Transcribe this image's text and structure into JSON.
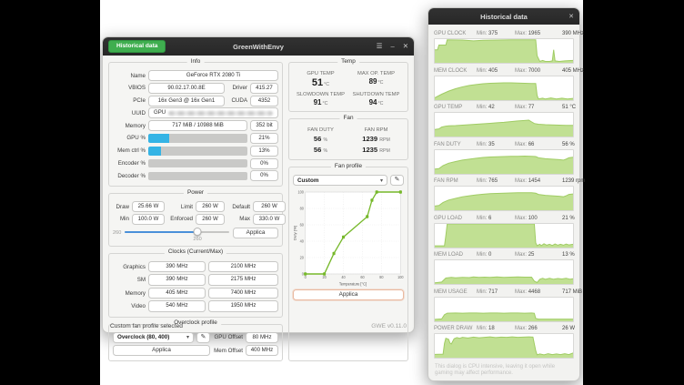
{
  "colors": {
    "accent_green": "#3fae4f",
    "progress_blue": "#35b4e5",
    "slider_blue": "#4a90d9",
    "line_green": "#76b82a",
    "area_fill": "#c1e093",
    "area_stroke": "#a0cc64",
    "titlebar": "#2b2b2b",
    "apply_highlight": "#eab9a0"
  },
  "main_window": {
    "titlebar": {
      "historical_button": "Historical data",
      "title": "GreenWithEnvy"
    },
    "info": {
      "legend": "Info",
      "name_label": "Name",
      "name_value": "GeForce RTX 2080 Ti",
      "vbios_label": "VBIOS",
      "vbios_value": "90.02.17.00.8E",
      "driver_label": "Driver",
      "driver_value": "415.27",
      "pcie_label": "PCIe",
      "pcie_value": "16x Gen3 @ 16x Gen1",
      "cuda_label": "CUDA",
      "cuda_value": "4352",
      "uuid_label": "UUID",
      "uuid_prefix": "GPU",
      "memory_label": "Memory",
      "memory_value": "717 MiB / 10988 MiB",
      "memory_interface": "352 bit",
      "usage_rows": [
        {
          "label": "GPU %",
          "pct": 21,
          "value": "21%"
        },
        {
          "label": "Mem ctrl %",
          "pct": 13,
          "value": "13%"
        },
        {
          "label": "Encoder %",
          "pct": 0,
          "value": "0%"
        },
        {
          "label": "Decoder %",
          "pct": 0,
          "value": "0%"
        }
      ]
    },
    "power": {
      "legend": "Power",
      "draw_label": "Draw",
      "draw": "25.66 W",
      "limit_label": "Limit",
      "limit": "260 W",
      "default_label": "Default",
      "default": "260 W",
      "min_label": "Min",
      "min": "100.0 W",
      "enforced_label": "Enforced",
      "enforced": "260 W",
      "max_label": "Max",
      "max": "330.0 W",
      "slider": {
        "min": 100,
        "max": 330,
        "value": 260,
        "left_label": "260",
        "handle_label": "260"
      },
      "apply_label": "Applica"
    },
    "clocks": {
      "legend": "Clocks (Current/Max)",
      "rows": [
        {
          "label": "Graphics",
          "current": "390 MHz",
          "max": "2100 MHz"
        },
        {
          "label": "SM",
          "current": "390 MHz",
          "max": "2175 MHz"
        },
        {
          "label": "Memory",
          "current": "405 MHz",
          "max": "7400 MHz"
        },
        {
          "label": "Video",
          "current": "540 MHz",
          "max": "1950 MHz"
        }
      ]
    },
    "overclock": {
      "legend": "Overclock profile",
      "selected": "Overclock (80, 400)",
      "gpu_offset_label": "GPU Offset",
      "gpu_offset": "80 MHz",
      "apply_label": "Applica",
      "mem_offset_label": "Mem Offset",
      "mem_offset": "400 MHz"
    },
    "temp": {
      "legend": "Temp",
      "items": [
        {
          "label": "GPU TEMP",
          "value": "51",
          "unit": "°C",
          "big": true
        },
        {
          "label": "MAX OP. TEMP",
          "value": "89",
          "unit": "°C",
          "big": false
        },
        {
          "label": "SLOWDOWN TEMP",
          "value": "91",
          "unit": "°C",
          "big": false
        },
        {
          "label": "SHUTDOWN TEMP",
          "value": "94",
          "unit": "°C",
          "big": false
        }
      ]
    },
    "fan": {
      "legend": "Fan",
      "duty_label": "FAN DUTY",
      "rpm_label": "FAN RPM",
      "duty_values": [
        "56",
        "56"
      ],
      "duty_unit": "%",
      "rpm_values": [
        "1239",
        "1235"
      ],
      "rpm_unit": "RPM"
    },
    "fan_profile": {
      "legend": "Fan profile",
      "selected": "Custom",
      "apply_label": "Applica"
    },
    "statusbar": {
      "status": "Custom fan profile selected",
      "version": "GWE v0.11.0"
    }
  },
  "historical_window": {
    "title": "Historical data",
    "min_label": "Min:",
    "max_label": "Max:",
    "graphs": [
      {
        "name": "GPU CLOCK",
        "min": "375",
        "max": "1965",
        "current": "390 MHz",
        "chart_id": "gpu-clock"
      },
      {
        "name": "MEM CLOCK",
        "min": "405",
        "max": "7000",
        "current": "405 MHz",
        "chart_id": "mem-clock"
      },
      {
        "name": "GPU TEMP",
        "min": "42",
        "max": "77",
        "current": "51 °C",
        "chart_id": "gpu-temp"
      },
      {
        "name": "FAN DUTY",
        "min": "35",
        "max": "66",
        "current": "56 %",
        "chart_id": "fan-duty"
      },
      {
        "name": "FAN RPM",
        "min": "765",
        "max": "1454",
        "current": "1239 rpm",
        "chart_id": "fan-rpm"
      },
      {
        "name": "GPU LOAD",
        "min": "6",
        "max": "100",
        "current": "21 %",
        "chart_id": "gpu-load"
      },
      {
        "name": "MEM LOAD",
        "min": "0",
        "max": "25",
        "current": "13 %",
        "chart_id": "mem-load"
      },
      {
        "name": "MEM USAGE",
        "min": "717",
        "max": "4468",
        "current": "717 MiB",
        "chart_id": "mem-usage"
      },
      {
        "name": "POWER DRAW",
        "min": "18",
        "max": "266",
        "current": "26 W",
        "chart_id": "power-draw"
      }
    ],
    "footer": "This dialog is CPU intensive, leaving it open while gaming may affect performance."
  },
  "chart_data": [
    {
      "id": "fan-profile-curve",
      "type": "line",
      "title": "Fan profile",
      "x": [
        0,
        20,
        30,
        40,
        65,
        70,
        75,
        100
      ],
      "y": [
        0,
        0,
        25,
        45,
        70,
        90,
        100,
        100
      ],
      "xlabel": "Temperature [°C]",
      "ylabel": "Duty [%]",
      "xlim": [
        0,
        100
      ],
      "ylim": [
        0,
        100
      ],
      "xticks": [
        0,
        20,
        40,
        60,
        80,
        100
      ],
      "yticks": [
        0,
        20,
        40,
        60,
        80,
        100
      ],
      "grid": true,
      "line_color": "#76b82a"
    },
    {
      "id": "gpu-clock",
      "type": "area",
      "unit": "MHz",
      "ymin": 375,
      "ymax": 1965,
      "current": 390,
      "points": [
        [
          0,
          55
        ],
        [
          2,
          55
        ],
        [
          3,
          75
        ],
        [
          8,
          75
        ],
        [
          9,
          97
        ],
        [
          20,
          96
        ],
        [
          28,
          93
        ],
        [
          35,
          95
        ],
        [
          45,
          96
        ],
        [
          55,
          97
        ],
        [
          65,
          97
        ],
        [
          73,
          97
        ],
        [
          74,
          30
        ],
        [
          76,
          6
        ],
        [
          78,
          10
        ],
        [
          80,
          6
        ],
        [
          83,
          6
        ],
        [
          85,
          8
        ],
        [
          86,
          55
        ],
        [
          87,
          8
        ],
        [
          90,
          6
        ],
        [
          94,
          8
        ],
        [
          100,
          10
        ]
      ]
    },
    {
      "id": "mem-clock",
      "type": "area",
      "unit": "MHz",
      "ymin": 405,
      "ymax": 7000,
      "current": 405,
      "points": [
        [
          0,
          10
        ],
        [
          5,
          25
        ],
        [
          10,
          38
        ],
        [
          15,
          48
        ],
        [
          20,
          56
        ],
        [
          25,
          62
        ],
        [
          30,
          66
        ],
        [
          35,
          69
        ],
        [
          40,
          71
        ],
        [
          45,
          72
        ],
        [
          50,
          73
        ],
        [
          55,
          73
        ],
        [
          60,
          72
        ],
        [
          65,
          71
        ],
        [
          70,
          70
        ],
        [
          73,
          70
        ],
        [
          74,
          20
        ],
        [
          75,
          5
        ],
        [
          78,
          8
        ],
        [
          80,
          5
        ],
        [
          84,
          9
        ],
        [
          88,
          5
        ],
        [
          92,
          8
        ],
        [
          96,
          5
        ],
        [
          100,
          7
        ]
      ]
    },
    {
      "id": "gpu-temp",
      "type": "area",
      "unit": "°C",
      "ymin": 42,
      "ymax": 77,
      "current": 51,
      "points": [
        [
          0,
          30
        ],
        [
          3,
          32
        ],
        [
          5,
          40
        ],
        [
          8,
          44
        ],
        [
          10,
          45
        ],
        [
          15,
          46
        ],
        [
          20,
          48
        ],
        [
          25,
          50
        ],
        [
          30,
          52
        ],
        [
          35,
          54
        ],
        [
          40,
          56
        ],
        [
          45,
          58
        ],
        [
          50,
          60
        ],
        [
          55,
          63
        ],
        [
          60,
          66
        ],
        [
          65,
          68
        ],
        [
          68,
          69
        ],
        [
          70,
          62
        ],
        [
          72,
          55
        ],
        [
          75,
          52
        ],
        [
          80,
          50
        ],
        [
          85,
          49
        ],
        [
          90,
          48
        ],
        [
          95,
          47
        ],
        [
          100,
          47
        ]
      ]
    },
    {
      "id": "fan-duty",
      "type": "area",
      "unit": "%",
      "ymin": 35,
      "ymax": 66,
      "current": 56,
      "points": [
        [
          0,
          20
        ],
        [
          3,
          22
        ],
        [
          6,
          35
        ],
        [
          10,
          45
        ],
        [
          15,
          52
        ],
        [
          20,
          58
        ],
        [
          25,
          62
        ],
        [
          30,
          66
        ],
        [
          35,
          69
        ],
        [
          40,
          71
        ],
        [
          45,
          72
        ],
        [
          50,
          73
        ],
        [
          55,
          74
        ],
        [
          60,
          74
        ],
        [
          65,
          75
        ],
        [
          70,
          74
        ],
        [
          73,
          73
        ],
        [
          75,
          68
        ],
        [
          80,
          64
        ],
        [
          85,
          62
        ],
        [
          90,
          60
        ],
        [
          93,
          58
        ],
        [
          95,
          62
        ],
        [
          97,
          68
        ],
        [
          100,
          70
        ]
      ]
    },
    {
      "id": "fan-rpm",
      "type": "area",
      "unit": "rpm",
      "ymin": 765,
      "ymax": 1454,
      "current": 1239,
      "points": [
        [
          0,
          18
        ],
        [
          3,
          20
        ],
        [
          6,
          33
        ],
        [
          10,
          43
        ],
        [
          15,
          50
        ],
        [
          20,
          57
        ],
        [
          25,
          61
        ],
        [
          30,
          65
        ],
        [
          35,
          68
        ],
        [
          40,
          70
        ],
        [
          45,
          71
        ],
        [
          50,
          72
        ],
        [
          55,
          73
        ],
        [
          60,
          74
        ],
        [
          65,
          74
        ],
        [
          70,
          74
        ],
        [
          73,
          72
        ],
        [
          75,
          67
        ],
        [
          80,
          63
        ],
        [
          85,
          61
        ],
        [
          90,
          59
        ],
        [
          93,
          57
        ],
        [
          95,
          61
        ],
        [
          97,
          67
        ],
        [
          100,
          69
        ]
      ]
    },
    {
      "id": "gpu-load",
      "type": "area",
      "unit": "%",
      "ymin": 6,
      "ymax": 100,
      "current": 21,
      "points": [
        [
          0,
          7
        ],
        [
          7,
          7
        ],
        [
          8,
          50
        ],
        [
          9,
          100
        ],
        [
          72,
          100
        ],
        [
          73,
          20
        ],
        [
          74,
          8
        ],
        [
          76,
          14
        ],
        [
          77,
          8
        ],
        [
          79,
          16
        ],
        [
          81,
          10
        ],
        [
          83,
          14
        ],
        [
          85,
          9
        ],
        [
          87,
          15
        ],
        [
          89,
          10
        ],
        [
          91,
          14
        ],
        [
          93,
          10
        ],
        [
          95,
          15
        ],
        [
          97,
          11
        ],
        [
          100,
          14
        ]
      ]
    },
    {
      "id": "mem-load",
      "type": "area",
      "unit": "%",
      "ymin": 0,
      "ymax": 25,
      "current": 13,
      "points": [
        [
          0,
          5
        ],
        [
          5,
          8
        ],
        [
          8,
          25
        ],
        [
          12,
          28
        ],
        [
          15,
          26
        ],
        [
          20,
          28
        ],
        [
          25,
          27
        ],
        [
          28,
          30
        ],
        [
          32,
          28
        ],
        [
          36,
          29
        ],
        [
          40,
          28
        ],
        [
          45,
          30
        ],
        [
          50,
          28
        ],
        [
          55,
          29
        ],
        [
          60,
          30
        ],
        [
          65,
          29
        ],
        [
          70,
          29
        ],
        [
          72,
          12
        ],
        [
          74,
          6
        ],
        [
          76,
          20
        ],
        [
          78,
          24
        ],
        [
          80,
          20
        ],
        [
          83,
          24
        ],
        [
          86,
          20
        ],
        [
          89,
          23
        ],
        [
          92,
          21
        ],
        [
          95,
          24
        ],
        [
          98,
          20
        ],
        [
          100,
          22
        ]
      ]
    },
    {
      "id": "mem-usage",
      "type": "area",
      "unit": "MiB",
      "ymin": 717,
      "ymax": 4468,
      "current": 717,
      "points": [
        [
          0,
          8
        ],
        [
          5,
          10
        ],
        [
          7,
          28
        ],
        [
          9,
          34
        ],
        [
          15,
          35
        ],
        [
          20,
          34
        ],
        [
          25,
          35
        ],
        [
          30,
          35
        ],
        [
          35,
          34
        ],
        [
          40,
          35
        ],
        [
          45,
          35
        ],
        [
          50,
          34
        ],
        [
          55,
          35
        ],
        [
          60,
          35
        ],
        [
          65,
          34
        ],
        [
          70,
          35
        ],
        [
          72,
          34
        ],
        [
          73,
          12
        ],
        [
          75,
          9
        ],
        [
          80,
          9
        ],
        [
          85,
          9
        ],
        [
          90,
          9
        ],
        [
          95,
          9
        ],
        [
          100,
          9
        ]
      ]
    },
    {
      "id": "power-draw",
      "type": "area",
      "unit": "W",
      "ymin": 18,
      "ymax": 266,
      "current": 26,
      "points": [
        [
          0,
          14
        ],
        [
          6,
          15
        ],
        [
          7,
          60
        ],
        [
          8,
          82
        ],
        [
          10,
          78
        ],
        [
          11,
          62
        ],
        [
          12,
          58
        ],
        [
          14,
          80
        ],
        [
          16,
          85
        ],
        [
          18,
          82
        ],
        [
          20,
          86
        ],
        [
          24,
          83
        ],
        [
          28,
          87
        ],
        [
          32,
          84
        ],
        [
          36,
          86
        ],
        [
          40,
          88
        ],
        [
          44,
          85
        ],
        [
          48,
          87
        ],
        [
          52,
          86
        ],
        [
          56,
          88
        ],
        [
          60,
          86
        ],
        [
          64,
          87
        ],
        [
          68,
          88
        ],
        [
          71,
          87
        ],
        [
          73,
          30
        ],
        [
          74,
          12
        ],
        [
          76,
          16
        ],
        [
          79,
          12
        ],
        [
          82,
          17
        ],
        [
          85,
          13
        ],
        [
          88,
          16
        ],
        [
          91,
          13
        ],
        [
          94,
          17
        ],
        [
          97,
          13
        ],
        [
          100,
          20
        ]
      ]
    }
  ]
}
